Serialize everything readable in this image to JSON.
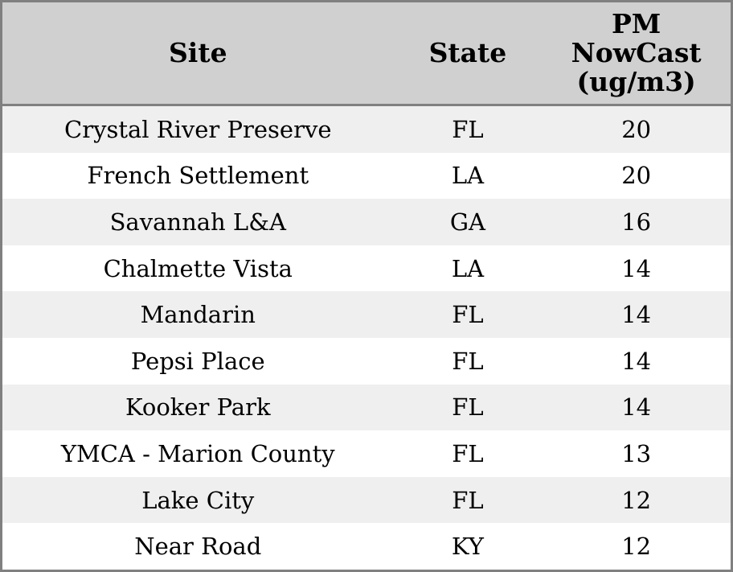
{
  "table": {
    "headers": {
      "site": "Site",
      "state": "State",
      "pm": "PM NowCast (ug/m3)"
    },
    "rows": [
      {
        "site": "Crystal River Preserve",
        "state": "FL",
        "value": "20"
      },
      {
        "site": "French Settlement",
        "state": "LA",
        "value": "20"
      },
      {
        "site": "Savannah L&A",
        "state": "GA",
        "value": "16"
      },
      {
        "site": "Chalmette Vista",
        "state": "LA",
        "value": "14"
      },
      {
        "site": "Mandarin",
        "state": "FL",
        "value": "14"
      },
      {
        "site": "Pepsi Place",
        "state": "FL",
        "value": "14"
      },
      {
        "site": "Kooker Park",
        "state": "FL",
        "value": "14"
      },
      {
        "site": "YMCA - Marion County",
        "state": "FL",
        "value": "13"
      },
      {
        "site": "Lake City",
        "state": "FL",
        "value": "12"
      },
      {
        "site": "Near Road",
        "state": "KY",
        "value": "12"
      }
    ]
  },
  "colors": {
    "header_bg": "#d0d0d0",
    "row_alt_bg": "#efefef",
    "row_bg": "#ffffff",
    "border": "#808080",
    "text": "#000000"
  },
  "chart_data": {
    "type": "table",
    "columns": [
      "Site",
      "State",
      "PM NowCast (ug/m3)"
    ],
    "rows": [
      [
        "Crystal River Preserve",
        "FL",
        20
      ],
      [
        "French Settlement",
        "LA",
        20
      ],
      [
        "Savannah L&A",
        "GA",
        16
      ],
      [
        "Chalmette Vista",
        "LA",
        14
      ],
      [
        "Mandarin",
        "FL",
        14
      ],
      [
        "Pepsi Place",
        "FL",
        14
      ],
      [
        "Kooker Park",
        "FL",
        14
      ],
      [
        "YMCA - Marion County",
        "FL",
        13
      ],
      [
        "Lake City",
        "FL",
        12
      ],
      [
        "Near Road",
        "KY",
        12
      ]
    ]
  }
}
